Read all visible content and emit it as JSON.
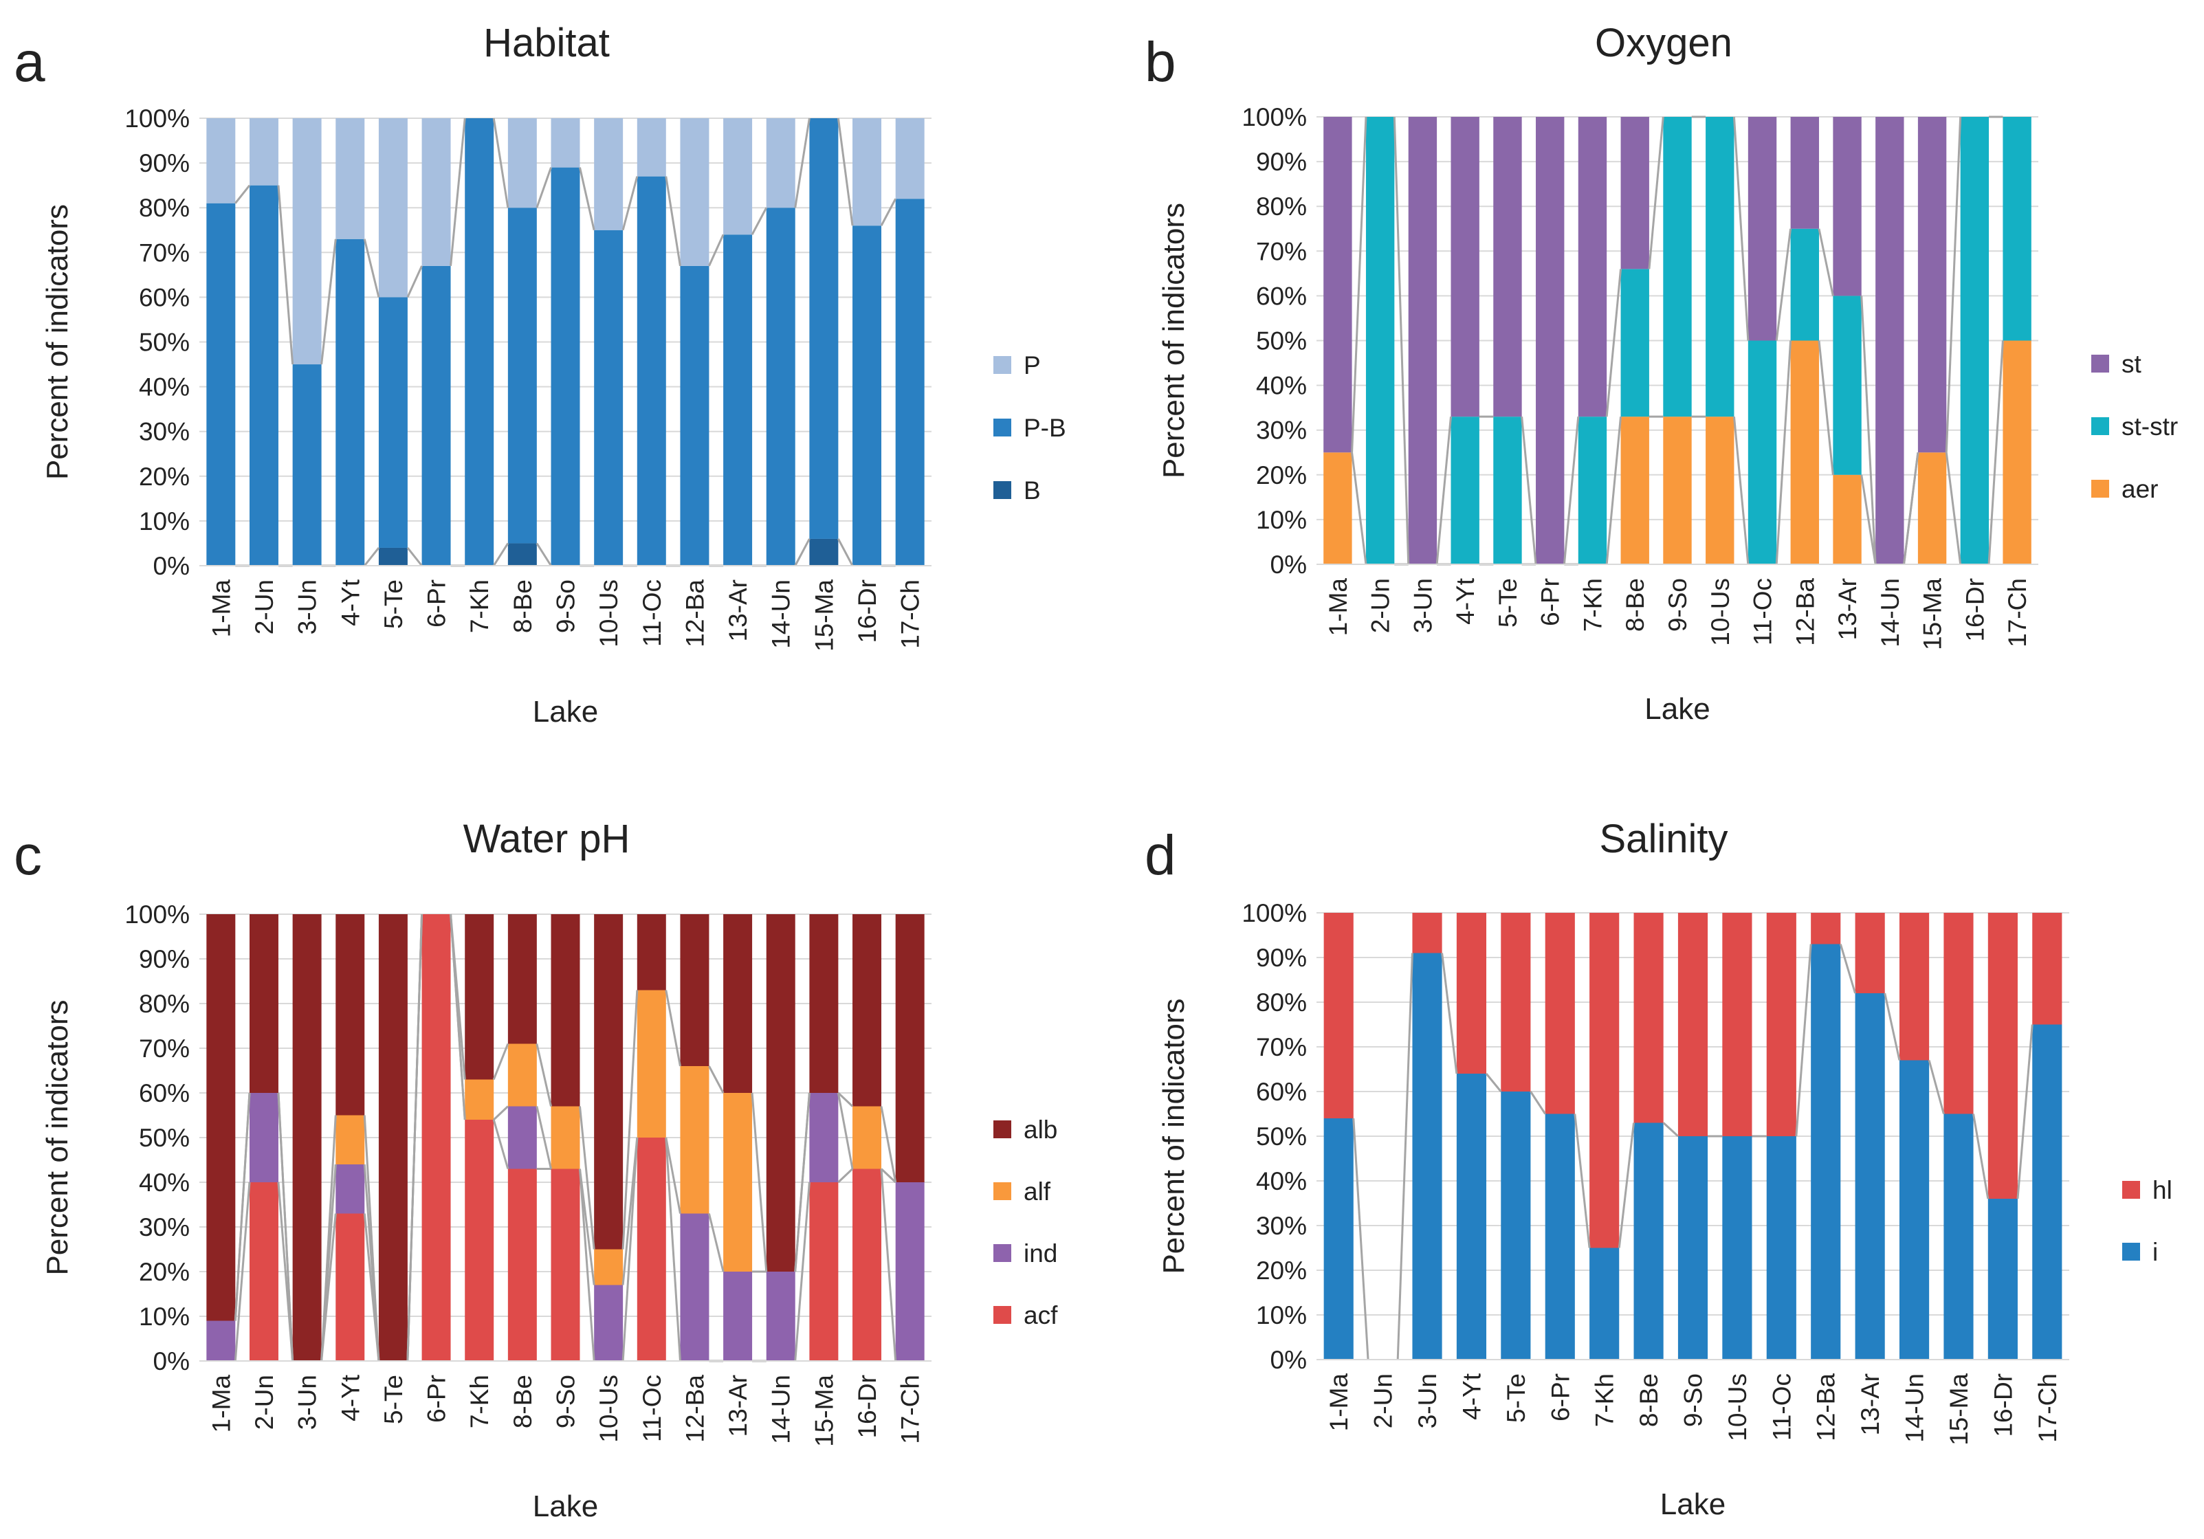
{
  "figure": {
    "categories": [
      "1-Ma",
      "2-Un",
      "3-Un",
      "4-Yt",
      "5-Te",
      "6-Pr",
      "7-Kh",
      "8-Be",
      "9-So",
      "10-Us",
      "11-Oc",
      "12-Ba",
      "13-Ar",
      "14-Un",
      "15-Ma",
      "16-Dr",
      "17-Ch"
    ]
  },
  "chart_data": [
    {
      "panel_label": "a",
      "type": "bar",
      "stacked": "percent",
      "title": "Habitat",
      "xlabel": "Lake",
      "ylabel": "Percent of indicators",
      "ylim": [
        0,
        100
      ],
      "yticks": [
        "0%",
        "10%",
        "20%",
        "30%",
        "40%",
        "50%",
        "60%",
        "70%",
        "80%",
        "90%",
        "100%"
      ],
      "grid": true,
      "legend_position": "right",
      "categories": [
        "1-Ma",
        "2-Un",
        "3-Un",
        "4-Yt",
        "5-Te",
        "6-Pr",
        "7-Kh",
        "8-Be",
        "9-So",
        "10-Us",
        "11-Oc",
        "12-Ba",
        "13-Ar",
        "14-Un",
        "15-Ma",
        "16-Dr",
        "17-Ch"
      ],
      "series": [
        {
          "name": "B",
          "color": "#1f5f96",
          "values": [
            0,
            0,
            0,
            0,
            4,
            0,
            0,
            5,
            0,
            0,
            0,
            0,
            0,
            0,
            6,
            0,
            0
          ]
        },
        {
          "name": "P-B",
          "color": "#2a80c2",
          "values": [
            81,
            85,
            45,
            73,
            56,
            67,
            100,
            75,
            89,
            75,
            87,
            67,
            74,
            80,
            94,
            76,
            82
          ]
        },
        {
          "name": "P",
          "color": "#a7bfdf",
          "values": [
            19,
            15,
            55,
            27,
            40,
            33,
            0,
            20,
            11,
            25,
            13,
            33,
            26,
            20,
            0,
            24,
            18
          ]
        }
      ]
    },
    {
      "panel_label": "b",
      "type": "bar",
      "stacked": "percent",
      "title": "Oxygen",
      "xlabel": "Lake",
      "ylabel": "Percent of indicators",
      "ylim": [
        0,
        100
      ],
      "yticks": [
        "0%",
        "10%",
        "20%",
        "30%",
        "40%",
        "50%",
        "60%",
        "70%",
        "80%",
        "90%",
        "100%"
      ],
      "grid": true,
      "legend_position": "right",
      "categories": [
        "1-Ma",
        "2-Un",
        "3-Un",
        "4-Yt",
        "5-Te",
        "6-Pr",
        "7-Kh",
        "8-Be",
        "9-So",
        "10-Us",
        "11-Oc",
        "12-Ba",
        "13-Ar",
        "14-Un",
        "15-Ma",
        "16-Dr",
        "17-Ch"
      ],
      "series": [
        {
          "name": "aer",
          "color": "#f9993c",
          "values": [
            25,
            0,
            0,
            0,
            0,
            0,
            0,
            33,
            33,
            33,
            0,
            50,
            20,
            0,
            25,
            0,
            50
          ]
        },
        {
          "name": "st-str",
          "color": "#14b0c4",
          "values": [
            0,
            100,
            0,
            33,
            33,
            0,
            33,
            33,
            67,
            67,
            50,
            25,
            40,
            0,
            0,
            100,
            50
          ]
        },
        {
          "name": "st",
          "color": "#8a67a9",
          "values": [
            75,
            0,
            100,
            67,
            67,
            100,
            67,
            34,
            0,
            0,
            50,
            25,
            40,
            100,
            75,
            0,
            0
          ]
        }
      ]
    },
    {
      "panel_label": "c",
      "type": "bar",
      "stacked": "percent",
      "title": "Water pH",
      "xlabel": "Lake",
      "ylabel": "Percent of indicators",
      "ylim": [
        0,
        100
      ],
      "yticks": [
        "0%",
        "10%",
        "20%",
        "30%",
        "40%",
        "50%",
        "60%",
        "70%",
        "80%",
        "90%",
        "100%"
      ],
      "grid": true,
      "legend_position": "right",
      "categories": [
        "1-Ma",
        "2-Un",
        "3-Un",
        "4-Yt",
        "5-Te",
        "6-Pr",
        "7-Kh",
        "8-Be",
        "9-So",
        "10-Us",
        "11-Oc",
        "12-Ba",
        "13-Ar",
        "14-Un",
        "15-Ma",
        "16-Dr",
        "17-Ch"
      ],
      "series": [
        {
          "name": "acf",
          "color": "#df4b4a",
          "values": [
            0,
            40,
            0,
            33,
            0,
            100,
            54,
            43,
            43,
            0,
            50,
            0,
            0,
            0,
            40,
            43,
            0
          ]
        },
        {
          "name": "ind",
          "color": "#8e63ad",
          "values": [
            9,
            20,
            0,
            11,
            0,
            0,
            0,
            14,
            0,
            17,
            0,
            33,
            20,
            20,
            20,
            0,
            40
          ]
        },
        {
          "name": "alf",
          "color": "#f9993c",
          "values": [
            0,
            0,
            0,
            11,
            0,
            0,
            9,
            14,
            14,
            8,
            33,
            33,
            40,
            0,
            0,
            14,
            0
          ]
        },
        {
          "name": "alb",
          "color": "#8c2424",
          "values": [
            91,
            40,
            100,
            45,
            100,
            0,
            37,
            29,
            43,
            75,
            17,
            34,
            40,
            80,
            40,
            43,
            60
          ]
        }
      ]
    },
    {
      "panel_label": "d",
      "type": "bar",
      "stacked": "percent",
      "title": "Salinity",
      "xlabel": "Lake",
      "ylabel": "Percent of indicators",
      "ylim": [
        0,
        100
      ],
      "yticks": [
        "0%",
        "10%",
        "20%",
        "30%",
        "40%",
        "50%",
        "60%",
        "70%",
        "80%",
        "90%",
        "100%"
      ],
      "grid": true,
      "legend_position": "right",
      "categories": [
        "1-Ma",
        "2-Un",
        "3-Un",
        "4-Yt",
        "5-Te",
        "6-Pr",
        "7-Kh",
        "8-Be",
        "9-So",
        "10-Us",
        "11-Oc",
        "12-Ba",
        "13-Ar",
        "14-Un",
        "15-Ma",
        "16-Dr",
        "17-Ch"
      ],
      "series": [
        {
          "name": "i",
          "color": "#2480c2",
          "values": [
            54,
            0,
            91,
            64,
            60,
            55,
            25,
            53,
            50,
            50,
            50,
            93,
            82,
            67,
            55,
            36,
            75
          ]
        },
        {
          "name": "hl",
          "color": "#df4b4a",
          "values": [
            46,
            0,
            9,
            36,
            40,
            45,
            75,
            47,
            50,
            50,
            50,
            7,
            18,
            33,
            45,
            64,
            25
          ]
        }
      ]
    }
  ]
}
